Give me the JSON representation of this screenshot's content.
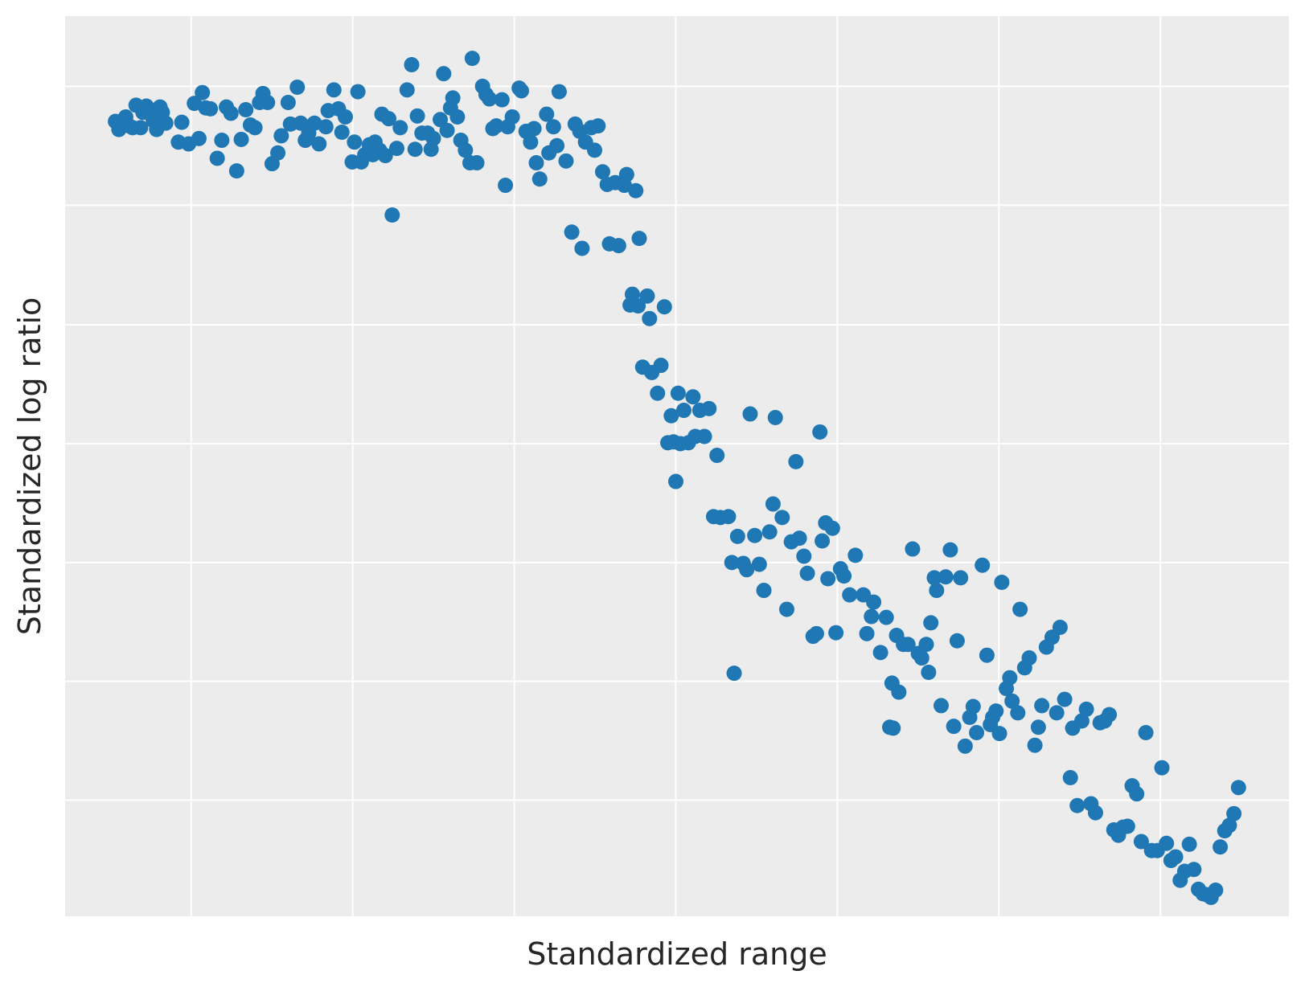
{
  "chart_data": {
    "type": "scatter",
    "title": "",
    "xlabel": "Standardized range",
    "ylabel": "Standardized log ratio",
    "xlim": [
      0,
      1
    ],
    "ylim": [
      0,
      1
    ],
    "grid": true,
    "legend": null,
    "x_ticks_labeled": false,
    "y_ticks_labeled": false,
    "x_gridlines": [
      0.103,
      0.235,
      0.367,
      0.499,
      0.631,
      0.763,
      0.895
    ],
    "y_gridlines": [
      0.922,
      0.79,
      0.657,
      0.525,
      0.393,
      0.261,
      0.129
    ],
    "marker_color": "#1f77b4",
    "background_color": "#ececec",
    "series": [
      {
        "name": "points",
        "points": [
          [
            0.044,
            0.883
          ],
          [
            0.047,
            0.874
          ],
          [
            0.05,
            0.881
          ],
          [
            0.053,
            0.888
          ],
          [
            0.056,
            0.878
          ],
          [
            0.059,
            0.876
          ],
          [
            0.062,
            0.901
          ],
          [
            0.066,
            0.876
          ],
          [
            0.068,
            0.893
          ],
          [
            0.071,
            0.9
          ],
          [
            0.074,
            0.893
          ],
          [
            0.077,
            0.884
          ],
          [
            0.08,
            0.874
          ],
          [
            0.083,
            0.899
          ],
          [
            0.085,
            0.893
          ],
          [
            0.088,
            0.881
          ],
          [
            0.099,
            0.86
          ],
          [
            0.102,
            0.882
          ],
          [
            0.108,
            0.858
          ],
          [
            0.113,
            0.903
          ],
          [
            0.117,
            0.864
          ],
          [
            0.12,
            0.915
          ],
          [
            0.123,
            0.898
          ],
          [
            0.127,
            0.897
          ],
          [
            0.133,
            0.842
          ],
          [
            0.137,
            0.862
          ],
          [
            0.141,
            0.899
          ],
          [
            0.145,
            0.892
          ],
          [
            0.15,
            0.828
          ],
          [
            0.154,
            0.863
          ],
          [
            0.158,
            0.896
          ],
          [
            0.162,
            0.879
          ],
          [
            0.166,
            0.876
          ],
          [
            0.17,
            0.904
          ],
          [
            0.173,
            0.914
          ],
          [
            0.177,
            0.904
          ],
          [
            0.181,
            0.836
          ],
          [
            0.186,
            0.848
          ],
          [
            0.189,
            0.867
          ],
          [
            0.195,
            0.904
          ],
          [
            0.197,
            0.88
          ],
          [
            0.203,
            0.921
          ],
          [
            0.206,
            0.881
          ],
          [
            0.21,
            0.862
          ],
          [
            0.213,
            0.87
          ],
          [
            0.218,
            0.881
          ],
          [
            0.222,
            0.858
          ],
          [
            0.228,
            0.877
          ],
          [
            0.23,
            0.895
          ],
          [
            0.235,
            0.918
          ],
          [
            0.239,
            0.897
          ],
          [
            0.242,
            0.871
          ],
          [
            0.245,
            0.888
          ],
          [
            0.251,
            0.838
          ],
          [
            0.253,
            0.86
          ],
          [
            0.256,
            0.916
          ],
          [
            0.259,
            0.838
          ],
          [
            0.262,
            0.846
          ],
          [
            0.266,
            0.857
          ],
          [
            0.269,
            0.846
          ],
          [
            0.271,
            0.86
          ],
          [
            0.275,
            0.851
          ],
          [
            0.277,
            0.891
          ],
          [
            0.28,
            0.845
          ],
          [
            0.283,
            0.886
          ],
          [
            0.286,
            0.779
          ],
          [
            0.29,
            0.853
          ],
          [
            0.293,
            0.876
          ],
          [
            0.299,
            0.918
          ],
          [
            0.303,
            0.946
          ],
          [
            0.306,
            0.852
          ],
          [
            0.308,
            0.889
          ],
          [
            0.312,
            0.87
          ],
          [
            0.317,
            0.87
          ],
          [
            0.32,
            0.852
          ],
          [
            0.322,
            0.864
          ],
          [
            0.328,
            0.885
          ],
          [
            0.331,
            0.936
          ],
          [
            0.334,
            0.873
          ],
          [
            0.337,
            0.898
          ],
          [
            0.339,
            0.909
          ],
          [
            0.343,
            0.888
          ],
          [
            0.346,
            0.862
          ],
          [
            0.35,
            0.851
          ],
          [
            0.354,
            0.837
          ],
          [
            0.356,
            0.953
          ],
          [
            0.36,
            0.837
          ],
          [
            0.365,
            0.922
          ],
          [
            0.368,
            0.913
          ],
          [
            0.371,
            0.908
          ],
          [
            0.374,
            0.875
          ],
          [
            0.377,
            0.878
          ],
          [
            0.382,
            0.907
          ],
          [
            0.385,
            0.812
          ],
          [
            0.387,
            0.877
          ],
          [
            0.391,
            0.888
          ],
          [
            0.397,
            0.92
          ],
          [
            0.399,
            0.917
          ],
          [
            0.403,
            0.872
          ],
          [
            0.407,
            0.86
          ],
          [
            0.41,
            0.875
          ],
          [
            0.412,
            0.837
          ],
          [
            0.415,
            0.819
          ],
          [
            0.421,
            0.891
          ],
          [
            0.423,
            0.848
          ],
          [
            0.427,
            0.877
          ],
          [
            0.43,
            0.856
          ],
          [
            0.432,
            0.916
          ],
          [
            0.438,
            0.839
          ],
          [
            0.443,
            0.76
          ],
          [
            0.446,
            0.88
          ],
          [
            0.45,
            0.872
          ],
          [
            0.452,
            0.742
          ],
          [
            0.455,
            0.86
          ],
          [
            0.46,
            0.876
          ],
          [
            0.463,
            0.851
          ],
          [
            0.466,
            0.878
          ],
          [
            0.47,
            0.827
          ],
          [
            0.474,
            0.813
          ],
          [
            0.476,
            0.747
          ],
          [
            0.481,
            0.815
          ],
          [
            0.484,
            0.745
          ],
          [
            0.489,
            0.812
          ],
          [
            0.491,
            0.824
          ],
          [
            0.494,
            0.679
          ],
          [
            0.496,
            0.691
          ],
          [
            0.499,
            0.806
          ],
          [
            0.501,
            0.678
          ],
          [
            0.502,
            0.753
          ],
          [
            0.505,
            0.61
          ],
          [
            0.509,
            0.689
          ],
          [
            0.511,
            0.664
          ],
          [
            0.513,
            0.604
          ],
          [
            0.518,
            0.581
          ],
          [
            0.521,
            0.612
          ],
          [
            0.524,
            0.677
          ],
          [
            0.527,
            0.526
          ],
          [
            0.53,
            0.556
          ],
          [
            0.532,
            0.527
          ],
          [
            0.534,
            0.483
          ],
          [
            0.536,
            0.581
          ],
          [
            0.538,
            0.525
          ],
          [
            0.541,
            0.562
          ],
          [
            0.545,
            0.526
          ],
          [
            0.549,
            0.577
          ],
          [
            0.551,
            0.533
          ],
          [
            0.555,
            0.562
          ],
          [
            0.559,
            0.533
          ],
          [
            0.563,
            0.564
          ],
          [
            0.567,
            0.444
          ],
          [
            0.57,
            0.512
          ],
          [
            0.573,
            0.443
          ],
          [
            0.58,
            0.444
          ],
          [
            0.583,
            0.393
          ],
          [
            0.585,
            0.27
          ],
          [
            0.588,
            0.422
          ],
          [
            0.593,
            0.392
          ],
          [
            0.596,
            0.385
          ],
          [
            0.599,
            0.558
          ],
          [
            0.603,
            0.423
          ],
          [
            0.607,
            0.391
          ],
          [
            0.611,
            0.362
          ],
          [
            0.616,
            0.427
          ],
          [
            0.619,
            0.458
          ],
          [
            0.621,
            0.554
          ],
          [
            0.627,
            0.443
          ],
          [
            0.631,
            0.341
          ],
          [
            0.635,
            0.416
          ],
          [
            0.639,
            0.505
          ],
          [
            0.642,
            0.42
          ],
          [
            0.646,
            0.4
          ],
          [
            0.649,
            0.381
          ],
          [
            0.654,
            0.311
          ],
          [
            0.657,
            0.314
          ],
          [
            0.66,
            0.538
          ],
          [
            0.662,
            0.417
          ],
          [
            0.665,
            0.437
          ],
          [
            0.667,
            0.375
          ],
          [
            0.671,
            0.431
          ],
          [
            0.674,
            0.315
          ],
          [
            0.678,
            0.386
          ],
          [
            0.681,
            0.378
          ],
          [
            0.686,
            0.357
          ],
          [
            0.691,
            0.401
          ],
          [
            0.698,
            0.357
          ],
          [
            0.701,
            0.314
          ],
          [
            0.705,
            0.333
          ],
          [
            0.707,
            0.349
          ],
          [
            0.713,
            0.293
          ],
          [
            0.718,
            0.332
          ],
          [
            0.721,
            0.21
          ],
          [
            0.723,
            0.259
          ],
          [
            0.724,
            0.209
          ],
          [
            0.727,
            0.312
          ],
          [
            0.729,
            0.249
          ],
          [
            0.733,
            0.302
          ],
          [
            0.737,
            0.302
          ],
          [
            0.741,
            0.408
          ],
          [
            0.746,
            0.292
          ],
          [
            0.749,
            0.287
          ],
          [
            0.753,
            0.302
          ],
          [
            0.755,
            0.271
          ],
          [
            0.757,
            0.326
          ],
          [
            0.76,
            0.376
          ],
          [
            0.762,
            0.362
          ],
          [
            0.766,
            0.234
          ],
          [
            0.77,
            0.377
          ],
          [
            0.774,
            0.407
          ],
          [
            0.777,
            0.211
          ],
          [
            0.78,
            0.306
          ],
          [
            0.783,
            0.376
          ],
          [
            0.787,
            0.189
          ],
          [
            0.791,
            0.221
          ],
          [
            0.794,
            0.233
          ],
          [
            0.797,
            0.204
          ],
          [
            0.802,
            0.39
          ],
          [
            0.806,
            0.29
          ],
          [
            0.809,
            0.213
          ],
          [
            0.811,
            0.221
          ],
          [
            0.814,
            0.228
          ],
          [
            0.817,
            0.203
          ],
          [
            0.819,
            0.371
          ],
          [
            0.823,
            0.253
          ],
          [
            0.826,
            0.265
          ],
          [
            0.828,
            0.239
          ],
          [
            0.833,
            0.226
          ],
          [
            0.835,
            0.341
          ],
          [
            0.839,
            0.276
          ],
          [
            0.843,
            0.287
          ],
          [
            0.848,
            0.19
          ],
          [
            0.851,
            0.21
          ],
          [
            0.854,
            0.234
          ],
          [
            0.858,
            0.299
          ],
          [
            0.863,
            0.31
          ],
          [
            0.867,
            0.226
          ],
          [
            0.87,
            0.321
          ],
          [
            0.874,
            0.241
          ],
          [
            0.879,
            0.154
          ],
          [
            0.881,
            0.209
          ],
          [
            0.885,
            0.123
          ],
          [
            0.889,
            0.217
          ],
          [
            0.893,
            0.23
          ],
          [
            0.897,
            0.125
          ],
          [
            0.901,
            0.115
          ],
          [
            0.905,
            0.215
          ],
          [
            0.909,
            0.217
          ],
          [
            0.913,
            0.224
          ],
          [
            0.917,
            0.096
          ],
          [
            0.921,
            0.09
          ],
          [
            0.925,
            0.099
          ],
          [
            0.929,
            0.1
          ],
          [
            0.933,
            0.145
          ],
          [
            0.937,
            0.136
          ],
          [
            0.941,
            0.083
          ],
          [
            0.945,
            0.204
          ],
          [
            0.95,
            0.073
          ],
          [
            0.955,
            0.073
          ],
          [
            0.959,
            0.165
          ],
          [
            0.963,
            0.081
          ],
          [
            0.967,
            0.062
          ],
          [
            0.971,
            0.066
          ],
          [
            0.975,
            0.04
          ],
          [
            0.979,
            0.05
          ],
          [
            0.983,
            0.08
          ],
          [
            0.987,
            0.052
          ],
          [
            0.991,
            0.03
          ],
          [
            0.995,
            0.025
          ],
          [
            0.998,
            0.024
          ],
          [
            1.002,
            0.021
          ],
          [
            1.006,
            0.029
          ],
          [
            1.01,
            0.077
          ],
          [
            1.014,
            0.095
          ],
          [
            1.018,
            0.101
          ],
          [
            1.022,
            0.114
          ],
          [
            1.026,
            0.143
          ]
        ]
      }
    ]
  }
}
